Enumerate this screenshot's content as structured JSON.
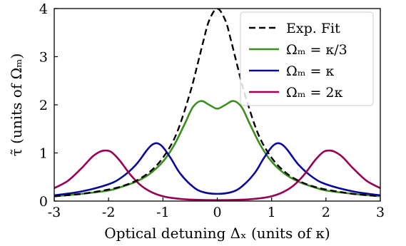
{
  "chart_data": {
    "type": "line",
    "xlabel": "Optical detuning Δₓ (units of κ)",
    "ylabel": "τ̃ (units of Ωₘ)",
    "xlim": [
      -3,
      3
    ],
    "ylim": [
      0,
      4
    ],
    "xticks": [
      -3,
      -2,
      -1,
      0,
      1,
      2,
      3
    ],
    "yticks": [
      0,
      1,
      2,
      3,
      4
    ],
    "xtick_labels": [
      "-3",
      "-2",
      "-1",
      "0",
      "1",
      "2",
      "3"
    ],
    "ytick_labels": [
      "0",
      "1",
      "2",
      "3",
      "4"
    ],
    "grid": false,
    "legend_placement": "top-right",
    "series": [
      {
        "name": "Exp. Fit",
        "color": "#000000",
        "style": "dashed",
        "x": [
          -3,
          -2.5,
          -2,
          -1.75,
          -1.5,
          -1.25,
          -1,
          -0.75,
          -0.5,
          -0.35,
          -0.25,
          -0.15,
          0,
          0.15,
          0.25,
          0.35,
          0.5,
          0.75,
          1,
          1.25,
          1.5,
          1.75,
          2,
          2.5,
          3
        ],
        "y": [
          0.1,
          0.15,
          0.24,
          0.31,
          0.42,
          0.6,
          0.9,
          1.4,
          2.25,
          2.9,
          3.35,
          3.75,
          4.0,
          3.75,
          3.35,
          2.9,
          2.25,
          1.4,
          0.9,
          0.6,
          0.42,
          0.31,
          0.24,
          0.15,
          0.1
        ]
      },
      {
        "name": "Ωₘ = κ/3",
        "color": "#3a8f1e",
        "style": "solid",
        "x": [
          -3,
          -2.5,
          -2,
          -1.75,
          -1.5,
          -1.25,
          -1,
          -0.8,
          -0.6,
          -0.45,
          -0.3,
          -0.15,
          0,
          0.15,
          0.3,
          0.45,
          0.6,
          0.8,
          1,
          1.25,
          1.5,
          1.75,
          2,
          2.5,
          3
        ],
        "y": [
          0.1,
          0.15,
          0.22,
          0.3,
          0.4,
          0.56,
          0.82,
          1.15,
          1.6,
          1.95,
          2.08,
          2.0,
          1.92,
          2.0,
          2.08,
          1.95,
          1.6,
          1.15,
          0.82,
          0.56,
          0.4,
          0.3,
          0.22,
          0.15,
          0.1
        ]
      },
      {
        "name": "Ωₘ = κ",
        "color": "#0a0a9a",
        "style": "solid",
        "x": [
          -3,
          -2.5,
          -2,
          -1.75,
          -1.5,
          -1.3,
          -1.2,
          -1.1,
          -1,
          -0.85,
          -0.7,
          -0.5,
          -0.3,
          0,
          0.3,
          0.5,
          0.7,
          0.85,
          1,
          1.1,
          1.2,
          1.3,
          1.5,
          1.75,
          2,
          2.5,
          3
        ],
        "y": [
          0.12,
          0.2,
          0.35,
          0.5,
          0.75,
          1.05,
          1.17,
          1.2,
          1.12,
          0.88,
          0.6,
          0.35,
          0.2,
          0.15,
          0.2,
          0.35,
          0.6,
          0.88,
          1.12,
          1.2,
          1.17,
          1.05,
          0.75,
          0.5,
          0.35,
          0.2,
          0.12
        ]
      },
      {
        "name": "Ωₘ = 2κ",
        "color": "#990055",
        "style": "solid",
        "x": [
          -3,
          -2.75,
          -2.5,
          -2.3,
          -2.15,
          -2.05,
          -1.95,
          -1.8,
          -1.6,
          -1.4,
          -1.2,
          -1,
          -0.8,
          -0.5,
          0,
          0.5,
          0.8,
          1,
          1.2,
          1.4,
          1.6,
          1.8,
          1.95,
          2.05,
          2.15,
          2.3,
          2.5,
          2.75,
          3
        ],
        "y": [
          0.27,
          0.42,
          0.68,
          0.92,
          1.03,
          1.05,
          1.02,
          0.85,
          0.55,
          0.32,
          0.18,
          0.1,
          0.06,
          0.03,
          0.02,
          0.03,
          0.06,
          0.1,
          0.18,
          0.32,
          0.55,
          0.85,
          1.02,
          1.05,
          1.03,
          0.92,
          0.68,
          0.42,
          0.27
        ]
      }
    ]
  }
}
